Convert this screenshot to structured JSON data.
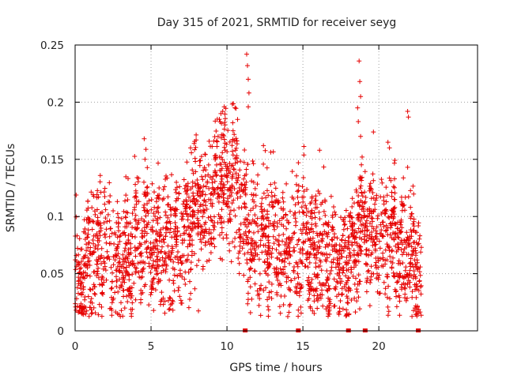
{
  "chart_data": {
    "type": "scatter",
    "title": "Day 315 of 2021, SRMTID for receiver seyg",
    "xlabel": "GPS time / hours",
    "ylabel": "SRMTID / TECUs",
    "xlim": [
      0,
      26.5
    ],
    "ylim": [
      0,
      0.25
    ],
    "xticks": [
      0,
      5,
      10,
      15,
      20
    ],
    "xtick_labels": [
      "0",
      "5",
      "10",
      "15",
      "20"
    ],
    "yticks": [
      0,
      0.05,
      0.1,
      0.15,
      0.2,
      0.25
    ],
    "ytick_labels": [
      "0",
      "0.05",
      "0.1",
      "0.15",
      "0.2",
      "0.25"
    ],
    "grid": true,
    "marker": "plus",
    "color": "#e60000",
    "zero_points": [
      11.2,
      14.7,
      18.0,
      19.1,
      22.6
    ],
    "trend": [
      [
        0.0,
        0.038
      ],
      [
        0.5,
        0.045
      ],
      [
        1.0,
        0.06
      ],
      [
        1.5,
        0.072
      ],
      [
        2.0,
        0.08
      ],
      [
        2.5,
        0.063
      ],
      [
        3.0,
        0.06
      ],
      [
        3.5,
        0.066
      ],
      [
        4.0,
        0.075
      ],
      [
        4.5,
        0.085
      ],
      [
        5.0,
        0.083
      ],
      [
        5.5,
        0.075
      ],
      [
        6.0,
        0.074
      ],
      [
        6.5,
        0.076
      ],
      [
        7.0,
        0.085
      ],
      [
        7.5,
        0.097
      ],
      [
        8.0,
        0.103
      ],
      [
        8.5,
        0.1
      ],
      [
        9.0,
        0.115
      ],
      [
        9.5,
        0.14
      ],
      [
        10.0,
        0.132
      ],
      [
        10.5,
        0.14
      ],
      [
        11.0,
        0.105
      ],
      [
        11.5,
        0.082
      ],
      [
        12.0,
        0.085
      ],
      [
        12.5,
        0.083
      ],
      [
        13.0,
        0.082
      ],
      [
        13.5,
        0.078
      ],
      [
        14.0,
        0.073
      ],
      [
        14.5,
        0.071
      ],
      [
        15.0,
        0.082
      ],
      [
        15.5,
        0.073
      ],
      [
        16.0,
        0.068
      ],
      [
        16.5,
        0.062
      ],
      [
        17.0,
        0.06
      ],
      [
        17.5,
        0.064
      ],
      [
        18.0,
        0.063
      ],
      [
        18.5,
        0.08
      ],
      [
        19.0,
        0.09
      ],
      [
        19.5,
        0.09
      ],
      [
        20.0,
        0.085
      ],
      [
        20.5,
        0.078
      ],
      [
        21.0,
        0.076
      ],
      [
        21.5,
        0.072
      ],
      [
        22.0,
        0.067
      ],
      [
        22.5,
        0.052
      ],
      [
        22.8,
        0.04
      ]
    ],
    "spikes": [
      [
        4.55,
        0.168
      ],
      [
        4.6,
        0.15
      ],
      [
        7.6,
        0.16
      ],
      [
        9.5,
        0.185
      ],
      [
        9.6,
        0.19
      ],
      [
        10.4,
        0.175
      ],
      [
        11.3,
        0.242
      ],
      [
        11.35,
        0.232
      ],
      [
        11.4,
        0.22
      ],
      [
        11.45,
        0.208
      ],
      [
        11.4,
        0.196
      ],
      [
        12.4,
        0.162
      ],
      [
        14.7,
        0.147
      ],
      [
        16.1,
        0.158
      ],
      [
        18.7,
        0.236
      ],
      [
        18.75,
        0.218
      ],
      [
        18.8,
        0.205
      ],
      [
        18.6,
        0.195
      ],
      [
        18.65,
        0.183
      ],
      [
        18.8,
        0.17
      ],
      [
        18.9,
        0.152
      ],
      [
        20.6,
        0.165
      ],
      [
        20.7,
        0.16
      ],
      [
        21.9,
        0.192
      ],
      [
        21.95,
        0.187
      ],
      [
        21.9,
        0.143
      ]
    ],
    "n_points": 2600
  }
}
